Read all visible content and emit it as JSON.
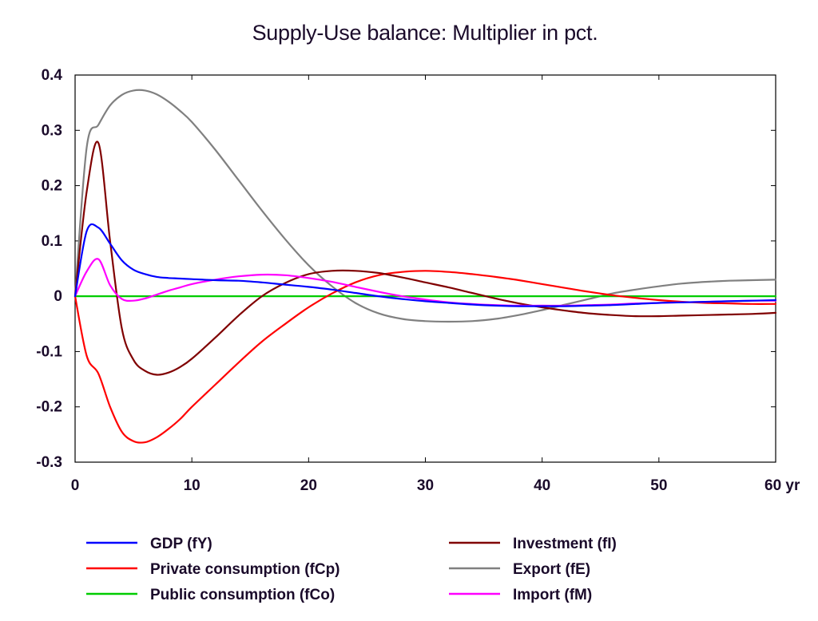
{
  "chart_data": {
    "type": "line",
    "title": "Supply-Use balance: Multiplier in pct.",
    "xlabel": "",
    "ylabel": "",
    "xlim": [
      0,
      60
    ],
    "ylim": [
      -0.3,
      0.4
    ],
    "x_ticks": [
      0,
      10,
      20,
      30,
      40,
      50,
      60
    ],
    "x_tick_labels": [
      "0",
      "10",
      "20",
      "30",
      "40",
      "50",
      "60 yr"
    ],
    "y_ticks": [
      0.4,
      0.3,
      0.2,
      0.1,
      0,
      -0.1,
      -0.2,
      -0.3
    ],
    "y_tick_labels": [
      "0.4",
      "0.3",
      "0.2",
      "0.1",
      "0",
      "-0.1",
      "-0.2",
      "-0.3"
    ],
    "grid": false,
    "legend_position": "bottom",
    "x": [
      0,
      1,
      2,
      3,
      4,
      5,
      6,
      7,
      8,
      9,
      10,
      12,
      14,
      16,
      18,
      20,
      22,
      24,
      26,
      28,
      30,
      32,
      34,
      36,
      38,
      40,
      42,
      44,
      46,
      48,
      50,
      52,
      54,
      56,
      58,
      60
    ],
    "series": [
      {
        "name": "GDP (fY)",
        "color": "#0000ff",
        "values": [
          0,
          0.118,
          0.124,
          0.095,
          0.065,
          0.048,
          0.04,
          0.035,
          0.033,
          0.032,
          0.031,
          0.029,
          0.028,
          0.025,
          0.021,
          0.017,
          0.012,
          0.006,
          0.0,
          -0.005,
          -0.009,
          -0.012,
          -0.015,
          -0.017,
          -0.018,
          -0.018,
          -0.018,
          -0.017,
          -0.016,
          -0.014,
          -0.012,
          -0.011,
          -0.01,
          -0.009,
          -0.008,
          -0.007
        ]
      },
      {
        "name": "Private consumption (fCp)",
        "color": "#ff0000",
        "values": [
          0,
          -0.108,
          -0.14,
          -0.2,
          -0.245,
          -0.262,
          -0.264,
          -0.255,
          -0.24,
          -0.222,
          -0.2,
          -0.16,
          -0.12,
          -0.082,
          -0.05,
          -0.02,
          0.005,
          0.025,
          0.038,
          0.044,
          0.046,
          0.044,
          0.04,
          0.035,
          0.029,
          0.022,
          0.015,
          0.008,
          0.002,
          -0.003,
          -0.007,
          -0.01,
          -0.012,
          -0.013,
          -0.014,
          -0.014
        ]
      },
      {
        "name": "Public consumption (fCo)",
        "color": "#00cc00",
        "values": [
          0,
          0,
          0,
          0,
          0,
          0,
          0,
          0,
          0,
          0,
          0,
          0,
          0,
          0,
          0,
          0,
          0,
          0,
          0,
          0,
          0,
          0,
          0,
          0,
          0,
          0,
          0,
          0,
          0,
          0,
          0,
          0,
          0,
          0,
          0,
          0
        ]
      },
      {
        "name": "Investment (fI)",
        "color": "#800000",
        "values": [
          0,
          0.19,
          0.277,
          0.1,
          -0.058,
          -0.115,
          -0.135,
          -0.142,
          -0.138,
          -0.128,
          -0.113,
          -0.075,
          -0.035,
          0.0,
          0.024,
          0.04,
          0.046,
          0.046,
          0.042,
          0.034,
          0.025,
          0.016,
          0.006,
          -0.004,
          -0.013,
          -0.02,
          -0.026,
          -0.031,
          -0.034,
          -0.036,
          -0.036,
          -0.035,
          -0.034,
          -0.033,
          -0.032,
          -0.03
        ]
      },
      {
        "name": "Export (fE)",
        "color": "#808080",
        "values": [
          0,
          0.27,
          0.31,
          0.345,
          0.364,
          0.372,
          0.372,
          0.365,
          0.352,
          0.335,
          0.315,
          0.265,
          0.21,
          0.155,
          0.103,
          0.056,
          0.018,
          -0.012,
          -0.031,
          -0.041,
          -0.045,
          -0.046,
          -0.045,
          -0.041,
          -0.034,
          -0.025,
          -0.015,
          -0.005,
          0.005,
          0.012,
          0.018,
          0.023,
          0.026,
          0.028,
          0.029,
          0.03
        ]
      },
      {
        "name": "Import (fM)",
        "color": "#ff00ff",
        "values": [
          0,
          0.045,
          0.067,
          0.02,
          -0.005,
          -0.008,
          -0.004,
          0.003,
          0.01,
          0.016,
          0.022,
          0.03,
          0.036,
          0.039,
          0.038,
          0.033,
          0.026,
          0.017,
          0.008,
          0.0,
          -0.006,
          -0.011,
          -0.014,
          -0.016,
          -0.017,
          -0.017,
          -0.017,
          -0.016,
          -0.015,
          -0.013,
          -0.012,
          -0.011,
          -0.01,
          -0.009,
          -0.008,
          -0.008
        ]
      }
    ],
    "legend_order": [
      0,
      3,
      1,
      4,
      2,
      5
    ]
  }
}
